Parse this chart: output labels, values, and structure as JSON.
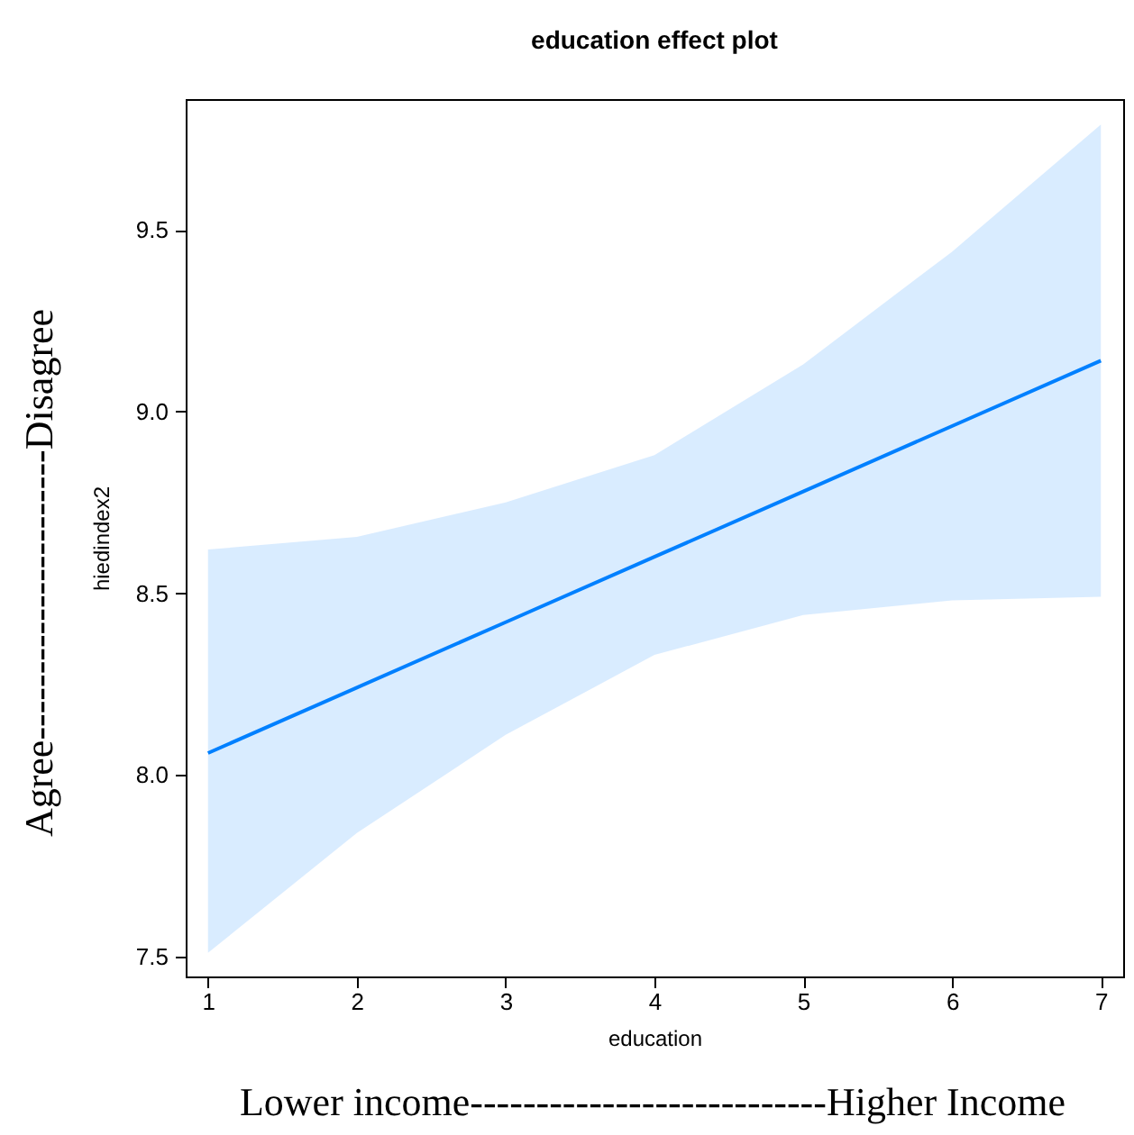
{
  "chart_data": {
    "type": "line",
    "title": "education effect plot",
    "xlabel": "education",
    "ylabel": "hiedindex2",
    "x": [
      1,
      2,
      3,
      4,
      5,
      6,
      7
    ],
    "series": [
      {
        "color": "#0080ff",
        "values": [
          8.06,
          8.24,
          8.42,
          8.6,
          8.78,
          8.96,
          9.14
        ],
        "lower": [
          7.51,
          7.84,
          8.11,
          8.33,
          8.44,
          8.48,
          8.49
        ],
        "upper": [
          8.62,
          8.655,
          8.75,
          8.88,
          9.13,
          9.44,
          9.79
        ]
      }
    ],
    "xlim": [
      0.85,
      7.15
    ],
    "ylim": [
      7.445,
      9.86
    ],
    "xticks": [
      1,
      2,
      3,
      4,
      5,
      6,
      7
    ],
    "yticks": [
      {
        "value": 7.5,
        "label": "7.5"
      },
      {
        "value": 8,
        "label": "8.0"
      },
      {
        "value": 8.5,
        "label": "8.5"
      },
      {
        "value": 9,
        "label": "9.0"
      },
      {
        "value": 9.5,
        "label": "9.5"
      }
    ],
    "grid": false,
    "annotations": [
      "Agree----------------------Disagree",
      "Lower income---------------------------Higher Income"
    ]
  }
}
